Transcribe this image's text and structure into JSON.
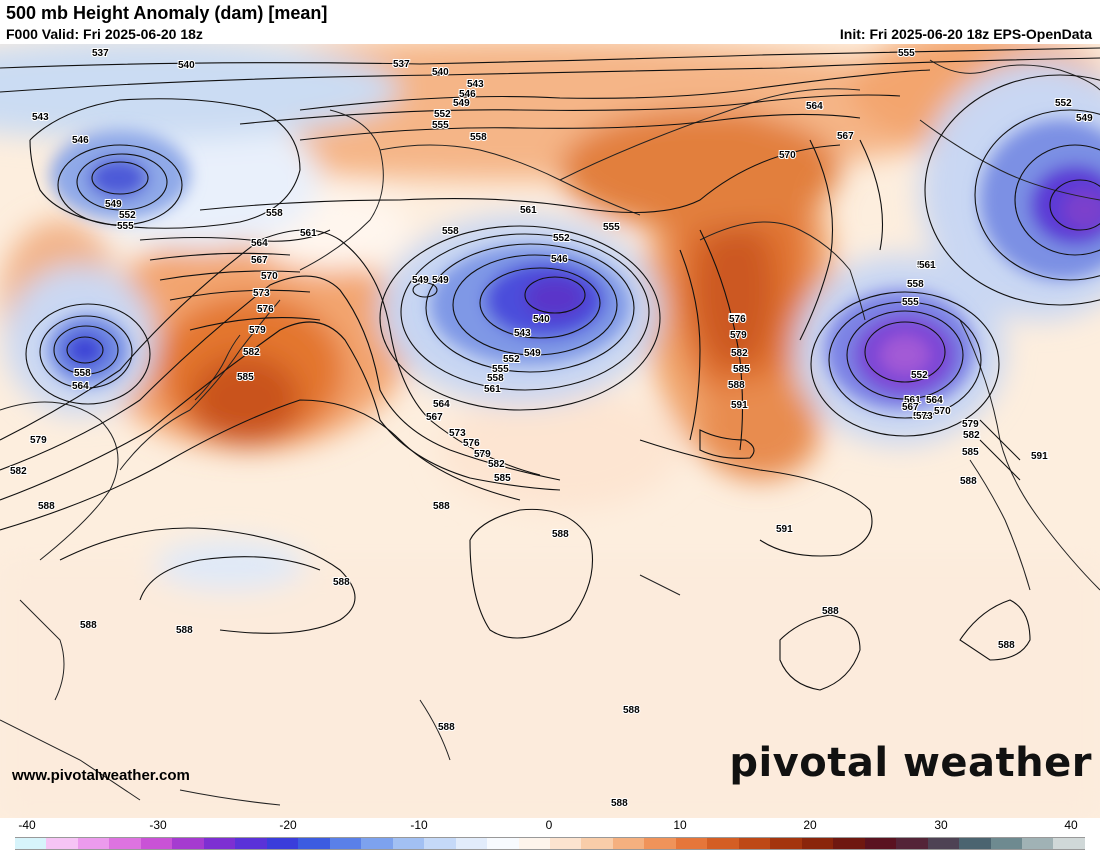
{
  "header": {
    "title": "500 mb Height Anomaly (dam) [mean]",
    "valid": "F000 Valid: Fri 2025-06-20 18z",
    "init": "Init: Fri 2025-06-20 18z EPS-OpenData"
  },
  "branding": {
    "logo_text": "pivotal weather",
    "website": "www.pivotalweather.com"
  },
  "colorbar": {
    "tick_labels": [
      "-40",
      "-30",
      "-20",
      "-10",
      "0",
      "10",
      "20",
      "30",
      "40"
    ],
    "colors": [
      "#d7f4fb",
      "#f6c4f5",
      "#ec9bed",
      "#dd73e0",
      "#c952d6",
      "#a53bd0",
      "#7d2fd2",
      "#5a32d8",
      "#3a3ddb",
      "#3c5ce0",
      "#5a80e8",
      "#7da2ee",
      "#a2c0f3",
      "#c5d9f8",
      "#e2ecfb",
      "#f7fafe",
      "#fdf4ec",
      "#fce3cf",
      "#f9cda9",
      "#f5b07f",
      "#f0935a",
      "#e6763a",
      "#d45e24",
      "#be4816",
      "#a4350e",
      "#8a250b",
      "#6f1810",
      "#5a1220",
      "#542438",
      "#4e4254",
      "#4b6470",
      "#6e8a90",
      "#a0b2b5",
      "#d0d8d8"
    ]
  },
  "contour_labels": [
    {
      "text": "537"
    },
    {
      "text": "537"
    },
    {
      "text": "540"
    },
    {
      "text": "540"
    },
    {
      "text": "543"
    },
    {
      "text": "543"
    },
    {
      "text": "546"
    },
    {
      "text": "546"
    },
    {
      "text": "549"
    },
    {
      "text": "549"
    },
    {
      "text": "552"
    },
    {
      "text": "552"
    },
    {
      "text": "555"
    },
    {
      "text": "555"
    },
    {
      "text": "555"
    },
    {
      "text": "558"
    },
    {
      "text": "558"
    },
    {
      "text": "558"
    },
    {
      "text": "561"
    },
    {
      "text": "561"
    },
    {
      "text": "564"
    },
    {
      "text": "564"
    },
    {
      "text": "567"
    },
    {
      "text": "570"
    },
    {
      "text": "573"
    },
    {
      "text": "576"
    },
    {
      "text": "579"
    },
    {
      "text": "582"
    },
    {
      "text": "585"
    },
    {
      "text": "588"
    },
    {
      "text": "591"
    },
    {
      "text": "591"
    },
    {
      "text": "588"
    },
    {
      "text": "549"
    },
    {
      "text": "552"
    },
    {
      "text": "555"
    },
    {
      "text": "558"
    },
    {
      "text": "561"
    },
    {
      "text": "564"
    },
    {
      "text": "567"
    },
    {
      "text": "570"
    },
    {
      "text": "573"
    },
    {
      "text": "576"
    },
    {
      "text": "579"
    },
    {
      "text": "582"
    },
    {
      "text": "585"
    },
    {
      "text": "588"
    },
    {
      "text": "549"
    },
    {
      "text": "546"
    },
    {
      "text": "540"
    },
    {
      "text": "543"
    },
    {
      "text": "549"
    },
    {
      "text": "552"
    },
    {
      "text": "555"
    },
    {
      "text": "558"
    },
    {
      "text": "561"
    },
    {
      "text": "564"
    },
    {
      "text": "567"
    },
    {
      "text": "573"
    },
    {
      "text": "576"
    },
    {
      "text": "579"
    },
    {
      "text": "582"
    },
    {
      "text": "585"
    },
    {
      "text": "558"
    },
    {
      "text": "564"
    },
    {
      "text": "579"
    },
    {
      "text": "582"
    },
    {
      "text": "588"
    },
    {
      "text": "588"
    },
    {
      "text": "588"
    },
    {
      "text": "588"
    },
    {
      "text": "588"
    },
    {
      "text": "588"
    },
    {
      "text": "588"
    },
    {
      "text": "588"
    },
    {
      "text": "588"
    },
    {
      "text": "591"
    },
    {
      "text": "561"
    },
    {
      "text": "558"
    },
    {
      "text": "555"
    },
    {
      "text": "552"
    },
    {
      "text": "561"
    },
    {
      "text": "564"
    },
    {
      "text": "567"
    },
    {
      "text": "570"
    },
    {
      "text": "573"
    },
    {
      "text": "579"
    },
    {
      "text": "582"
    },
    {
      "text": "585"
    },
    {
      "text": "588"
    },
    {
      "text": "591"
    },
    {
      "text": "552"
    },
    {
      "text": "549"
    },
    {
      "text": "576"
    },
    {
      "text": "579"
    },
    {
      "text": "582"
    },
    {
      "text": "585"
    },
    {
      "text": "588"
    },
    {
      "text": "591"
    }
  ]
}
